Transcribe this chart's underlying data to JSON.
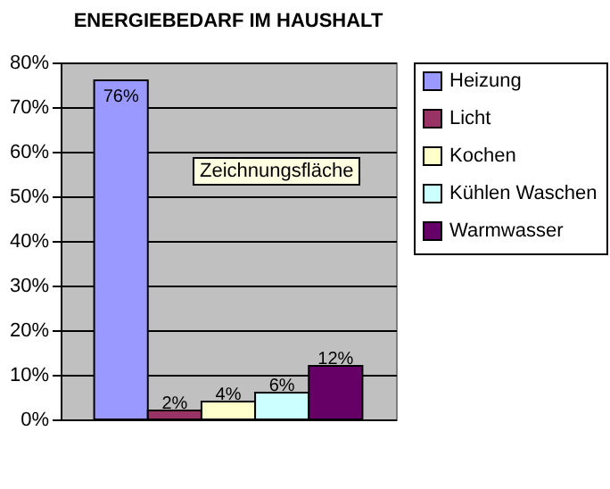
{
  "chart_data": {
    "type": "bar",
    "title": "ENERGIEBEDARF IM HAUSHALT",
    "categories": [
      null
    ],
    "series": [
      {
        "name": "Heizung",
        "color": "#9999ff",
        "values": [
          76
        ],
        "value_labels": [
          "76%"
        ]
      },
      {
        "name": "Licht",
        "color": "#993366",
        "values": [
          2
        ],
        "value_labels": [
          "2%"
        ]
      },
      {
        "name": "Kochen",
        "color": "#ffffcc",
        "values": [
          4
        ],
        "value_labels": [
          "4%"
        ]
      },
      {
        "name": "Kühlen Waschen",
        "color": "#ccffff",
        "values": [
          6
        ],
        "value_labels": [
          "6%"
        ]
      },
      {
        "name": "Warmwasser",
        "color": "#660066",
        "values": [
          12
        ],
        "value_labels": [
          "12%"
        ]
      }
    ],
    "ylim": [
      0,
      80
    ],
    "yticks": [
      {
        "value": 0,
        "label": "0%"
      },
      {
        "value": 10,
        "label": "10%"
      },
      {
        "value": 20,
        "label": "20%"
      },
      {
        "value": 30,
        "label": "30%"
      },
      {
        "value": 40,
        "label": "40%"
      },
      {
        "value": 50,
        "label": "50%"
      },
      {
        "value": 60,
        "label": "60%"
      },
      {
        "value": 70,
        "label": "70%"
      },
      {
        "value": 80,
        "label": "80%"
      }
    ],
    "grid": "y",
    "legend": "right",
    "annotations": [
      "Zeichnungsfläche"
    ]
  }
}
